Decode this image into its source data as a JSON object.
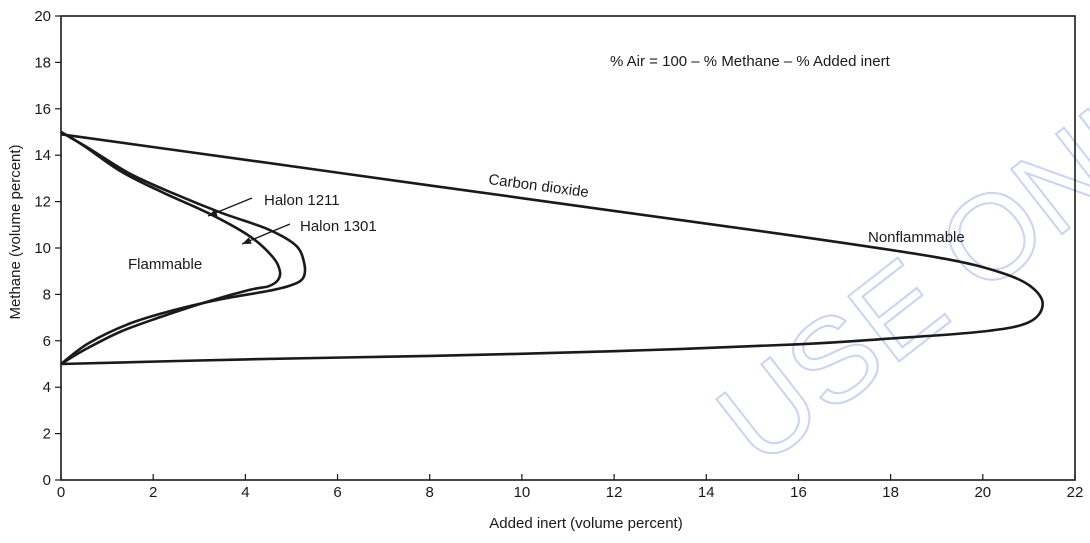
{
  "chart_data": {
    "type": "line",
    "xlabel": "Added inert (volume percent)",
    "ylabel": "Methane (volume percent)",
    "xlim": [
      0,
      22
    ],
    "ylim": [
      0,
      20
    ],
    "xticks": [
      0,
      2,
      4,
      6,
      8,
      10,
      12,
      14,
      16,
      18,
      20,
      22
    ],
    "yticks": [
      0,
      2,
      4,
      6,
      8,
      10,
      12,
      14,
      16,
      18,
      20
    ],
    "grid": false,
    "annotations": {
      "formula": "% Air = 100 – % Methane – % Added inert",
      "flammable": "Flammable",
      "nonflammable": "Nonflammable"
    },
    "series": [
      {
        "name": "Carbon dioxide",
        "points": [
          [
            0,
            14.9
          ],
          [
            4,
            13.8
          ],
          [
            8,
            12.7
          ],
          [
            12,
            11.6
          ],
          [
            16,
            10.5
          ],
          [
            19,
            9.6
          ],
          [
            20.3,
            9.0
          ],
          [
            21.0,
            8.4
          ],
          [
            21.3,
            7.6
          ],
          [
            21.0,
            6.8
          ],
          [
            20.0,
            6.4
          ],
          [
            18,
            6.1
          ],
          [
            16,
            5.85
          ],
          [
            12,
            5.55
          ],
          [
            8,
            5.35
          ],
          [
            4,
            5.2
          ],
          [
            0,
            5.0
          ]
        ]
      },
      {
        "name": "Halon 1301",
        "points": [
          [
            0,
            15.0
          ],
          [
            0.6,
            14.3
          ],
          [
            1.5,
            13.2
          ],
          [
            2.5,
            12.3
          ],
          [
            3.5,
            11.5
          ],
          [
            4.5,
            10.8
          ],
          [
            5.1,
            10.1
          ],
          [
            5.28,
            9.3
          ],
          [
            5.25,
            8.7
          ],
          [
            5.0,
            8.4
          ],
          [
            4.5,
            8.15
          ],
          [
            3.5,
            7.8
          ],
          [
            2.5,
            7.35
          ],
          [
            1.5,
            6.75
          ],
          [
            0.6,
            5.9
          ],
          [
            0,
            5.0
          ]
        ]
      },
      {
        "name": "Halon 1211",
        "points": [
          [
            0,
            15.0
          ],
          [
            0.5,
            14.4
          ],
          [
            1.3,
            13.3
          ],
          [
            2.2,
            12.4
          ],
          [
            3.2,
            11.5
          ],
          [
            4.1,
            10.5
          ],
          [
            4.6,
            9.6
          ],
          [
            4.75,
            9.0
          ],
          [
            4.7,
            8.6
          ],
          [
            4.5,
            8.35
          ],
          [
            4.1,
            8.2
          ],
          [
            3.2,
            7.7
          ],
          [
            2.2,
            7.05
          ],
          [
            1.3,
            6.4
          ],
          [
            0.5,
            5.6
          ],
          [
            0,
            5.0
          ]
        ]
      }
    ]
  }
}
